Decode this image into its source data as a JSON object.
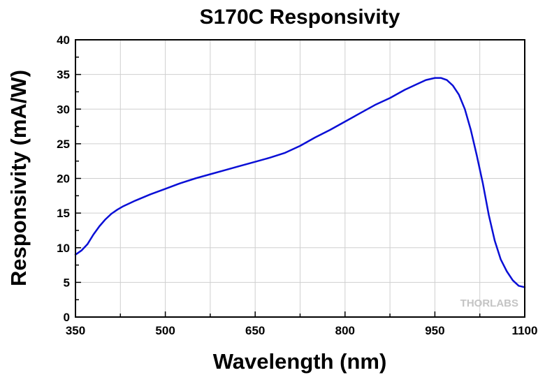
{
  "chart_data": {
    "type": "line",
    "title": "S170C Responsivity",
    "xlabel": "Wavelength (nm)",
    "ylabel": "Responsivity (mA/W)",
    "xlim": [
      350,
      1100
    ],
    "ylim": [
      0,
      40
    ],
    "x_ticks": [
      350,
      500,
      650,
      800,
      950,
      1100
    ],
    "y_ticks": [
      0,
      5,
      10,
      15,
      20,
      25,
      30,
      35,
      40
    ],
    "grid": true,
    "watermark": "THORLABS",
    "series": [
      {
        "color": "#0a0fd6",
        "x": [
          350,
          360,
          370,
          380,
          390,
          400,
          410,
          420,
          430,
          440,
          450,
          475,
          500,
          525,
          550,
          575,
          600,
          625,
          650,
          675,
          700,
          725,
          750,
          775,
          800,
          825,
          850,
          875,
          900,
          920,
          935,
          950,
          960,
          970,
          980,
          990,
          1000,
          1010,
          1020,
          1030,
          1040,
          1050,
          1060,
          1070,
          1080,
          1090,
          1100
        ],
        "y": [
          9.0,
          9.6,
          10.5,
          11.9,
          13.1,
          14.1,
          14.9,
          15.5,
          16.0,
          16.4,
          16.8,
          17.7,
          18.5,
          19.3,
          20.0,
          20.6,
          21.2,
          21.8,
          22.4,
          23.0,
          23.7,
          24.7,
          25.9,
          27.0,
          28.2,
          29.4,
          30.6,
          31.6,
          32.8,
          33.6,
          34.2,
          34.5,
          34.5,
          34.2,
          33.4,
          32.1,
          30.0,
          27.0,
          23.3,
          19.3,
          14.7,
          11.0,
          8.3,
          6.6,
          5.3,
          4.5,
          4.3
        ]
      }
    ]
  }
}
